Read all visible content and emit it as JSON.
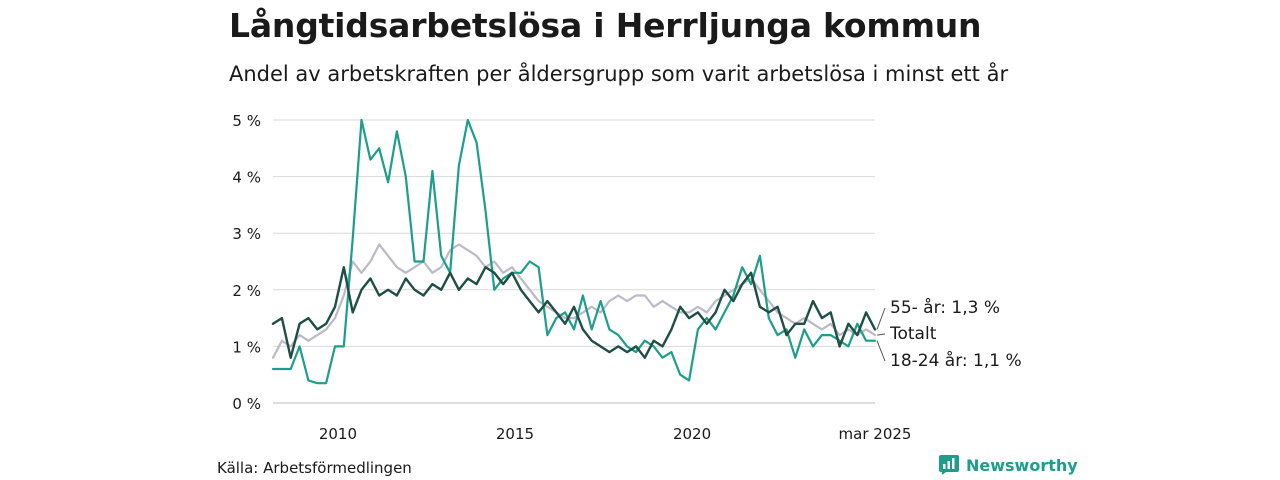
{
  "title": "Långtidsarbetslösa i Herrljunga kommun",
  "subtitle": "Andel av arbetskraften per åldersgrupp som varit arbetslösa i minst ett år",
  "source": "Källa: Arbetsförmedlingen",
  "brand": "Newsworthy",
  "brand_icon": "newsworthy-logo-icon",
  "colors": {
    "total": "#bdb9c6",
    "youth": "#1b9e8a",
    "senior": "#1f4e45",
    "grid": "#d9d9d9",
    "brand": "#1b9e8a"
  },
  "chart_data": {
    "type": "line",
    "x_ticks": [
      "2010",
      "2015",
      "2020",
      "mar 2025"
    ],
    "y_ticks": [
      "0 %",
      "1 %",
      "2 %",
      "3 %",
      "4 %",
      "5 %"
    ],
    "ylim": [
      0,
      5
    ],
    "xlim": [
      "2008-03",
      "2025-03"
    ],
    "grid": true,
    "end_labels": [
      {
        "series": "senior",
        "text": "55- år: 1,3 %"
      },
      {
        "series": "total",
        "text": "Totalt"
      },
      {
        "series": "youth",
        "text": "18-24 år: 1,1 %"
      }
    ],
    "series": [
      {
        "key": "total",
        "points": [
          [
            "2008-03",
            0.8
          ],
          [
            "2008-06",
            1.1
          ],
          [
            "2008-09",
            1.0
          ],
          [
            "2008-12",
            1.2
          ],
          [
            "2009-03",
            1.1
          ],
          [
            "2009-06",
            1.2
          ],
          [
            "2009-09",
            1.3
          ],
          [
            "2009-12",
            1.5
          ],
          [
            "2010-03",
            1.9
          ],
          [
            "2010-06",
            2.5
          ],
          [
            "2010-09",
            2.3
          ],
          [
            "2010-12",
            2.5
          ],
          [
            "2011-03",
            2.8
          ],
          [
            "2011-06",
            2.6
          ],
          [
            "2011-09",
            2.4
          ],
          [
            "2011-12",
            2.3
          ],
          [
            "2012-03",
            2.4
          ],
          [
            "2012-06",
            2.5
          ],
          [
            "2012-09",
            2.3
          ],
          [
            "2012-12",
            2.4
          ],
          [
            "2013-03",
            2.7
          ],
          [
            "2013-06",
            2.8
          ],
          [
            "2013-09",
            2.7
          ],
          [
            "2013-12",
            2.6
          ],
          [
            "2014-03",
            2.4
          ],
          [
            "2014-06",
            2.5
          ],
          [
            "2014-09",
            2.3
          ],
          [
            "2014-12",
            2.4
          ],
          [
            "2015-03",
            2.2
          ],
          [
            "2015-06",
            2.0
          ],
          [
            "2015-09",
            1.8
          ],
          [
            "2015-12",
            1.7
          ],
          [
            "2016-03",
            1.6
          ],
          [
            "2016-06",
            1.5
          ],
          [
            "2016-09",
            1.5
          ],
          [
            "2016-12",
            1.6
          ],
          [
            "2017-03",
            1.7
          ],
          [
            "2017-06",
            1.6
          ],
          [
            "2017-09",
            1.8
          ],
          [
            "2017-12",
            1.9
          ],
          [
            "2018-03",
            1.8
          ],
          [
            "2018-06",
            1.9
          ],
          [
            "2018-09",
            1.9
          ],
          [
            "2018-12",
            1.7
          ],
          [
            "2019-03",
            1.8
          ],
          [
            "2019-06",
            1.7
          ],
          [
            "2019-09",
            1.6
          ],
          [
            "2019-12",
            1.6
          ],
          [
            "2020-03",
            1.7
          ],
          [
            "2020-06",
            1.6
          ],
          [
            "2020-09",
            1.8
          ],
          [
            "2020-12",
            1.9
          ],
          [
            "2021-03",
            2.0
          ],
          [
            "2021-06",
            2.1
          ],
          [
            "2021-09",
            2.2
          ],
          [
            "2021-12",
            2.0
          ],
          [
            "2022-03",
            1.8
          ],
          [
            "2022-06",
            1.6
          ],
          [
            "2022-09",
            1.5
          ],
          [
            "2022-12",
            1.4
          ],
          [
            "2023-03",
            1.5
          ],
          [
            "2023-06",
            1.4
          ],
          [
            "2023-09",
            1.3
          ],
          [
            "2023-12",
            1.4
          ],
          [
            "2024-03",
            1.2
          ],
          [
            "2024-06",
            1.3
          ],
          [
            "2024-09",
            1.2
          ],
          [
            "2024-12",
            1.3
          ],
          [
            "2025-03",
            1.2
          ]
        ]
      },
      {
        "key": "youth",
        "points": [
          [
            "2008-03",
            0.6
          ],
          [
            "2008-06",
            0.6
          ],
          [
            "2008-09",
            0.6
          ],
          [
            "2008-12",
            1.0
          ],
          [
            "2009-03",
            0.4
          ],
          [
            "2009-06",
            0.35
          ],
          [
            "2009-09",
            0.35
          ],
          [
            "2009-12",
            1.0
          ],
          [
            "2010-03",
            1.0
          ],
          [
            "2010-06",
            2.9
          ],
          [
            "2010-09",
            5.0
          ],
          [
            "2010-12",
            4.3
          ],
          [
            "2011-03",
            4.5
          ],
          [
            "2011-06",
            3.9
          ],
          [
            "2011-09",
            4.8
          ],
          [
            "2011-12",
            4.0
          ],
          [
            "2012-03",
            2.5
          ],
          [
            "2012-06",
            2.5
          ],
          [
            "2012-09",
            4.1
          ],
          [
            "2012-12",
            2.6
          ],
          [
            "2013-03",
            2.3
          ],
          [
            "2013-06",
            4.2
          ],
          [
            "2013-09",
            5.0
          ],
          [
            "2013-12",
            4.6
          ],
          [
            "2014-03",
            3.4
          ],
          [
            "2014-06",
            2.0
          ],
          [
            "2014-09",
            2.2
          ],
          [
            "2014-12",
            2.3
          ],
          [
            "2015-03",
            2.3
          ],
          [
            "2015-06",
            2.5
          ],
          [
            "2015-09",
            2.4
          ],
          [
            "2015-12",
            1.2
          ],
          [
            "2016-03",
            1.5
          ],
          [
            "2016-06",
            1.6
          ],
          [
            "2016-09",
            1.3
          ],
          [
            "2016-12",
            1.9
          ],
          [
            "2017-03",
            1.3
          ],
          [
            "2017-06",
            1.8
          ],
          [
            "2017-09",
            1.3
          ],
          [
            "2017-12",
            1.2
          ],
          [
            "2018-03",
            1.0
          ],
          [
            "2018-06",
            0.9
          ],
          [
            "2018-09",
            1.1
          ],
          [
            "2018-12",
            1.0
          ],
          [
            "2019-03",
            0.8
          ],
          [
            "2019-06",
            0.9
          ],
          [
            "2019-09",
            0.5
          ],
          [
            "2019-12",
            0.4
          ],
          [
            "2020-03",
            1.3
          ],
          [
            "2020-06",
            1.5
          ],
          [
            "2020-09",
            1.3
          ],
          [
            "2020-12",
            1.6
          ],
          [
            "2021-03",
            1.9
          ],
          [
            "2021-06",
            2.4
          ],
          [
            "2021-09",
            2.1
          ],
          [
            "2021-12",
            2.6
          ],
          [
            "2022-03",
            1.5
          ],
          [
            "2022-06",
            1.2
          ],
          [
            "2022-09",
            1.3
          ],
          [
            "2022-12",
            0.8
          ],
          [
            "2023-03",
            1.3
          ],
          [
            "2023-06",
            1.0
          ],
          [
            "2023-09",
            1.2
          ],
          [
            "2023-12",
            1.2
          ],
          [
            "2024-03",
            1.1
          ],
          [
            "2024-06",
            1.0
          ],
          [
            "2024-09",
            1.4
          ],
          [
            "2024-12",
            1.1
          ],
          [
            "2025-03",
            1.1
          ]
        ]
      },
      {
        "key": "senior",
        "points": [
          [
            "2008-03",
            1.4
          ],
          [
            "2008-06",
            1.5
          ],
          [
            "2008-09",
            0.8
          ],
          [
            "2008-12",
            1.4
          ],
          [
            "2009-03",
            1.5
          ],
          [
            "2009-06",
            1.3
          ],
          [
            "2009-09",
            1.4
          ],
          [
            "2009-12",
            1.7
          ],
          [
            "2010-03",
            2.4
          ],
          [
            "2010-06",
            1.6
          ],
          [
            "2010-09",
            2.0
          ],
          [
            "2010-12",
            2.2
          ],
          [
            "2011-03",
            1.9
          ],
          [
            "2011-06",
            2.0
          ],
          [
            "2011-09",
            1.9
          ],
          [
            "2011-12",
            2.2
          ],
          [
            "2012-03",
            2.0
          ],
          [
            "2012-06",
            1.9
          ],
          [
            "2012-09",
            2.1
          ],
          [
            "2012-12",
            2.0
          ],
          [
            "2013-03",
            2.3
          ],
          [
            "2013-06",
            2.0
          ],
          [
            "2013-09",
            2.2
          ],
          [
            "2013-12",
            2.1
          ],
          [
            "2014-03",
            2.4
          ],
          [
            "2014-06",
            2.3
          ],
          [
            "2014-09",
            2.1
          ],
          [
            "2014-12",
            2.3
          ],
          [
            "2015-03",
            2.0
          ],
          [
            "2015-06",
            1.8
          ],
          [
            "2015-09",
            1.6
          ],
          [
            "2015-12",
            1.8
          ],
          [
            "2016-03",
            1.6
          ],
          [
            "2016-06",
            1.4
          ],
          [
            "2016-09",
            1.7
          ],
          [
            "2016-12",
            1.3
          ],
          [
            "2017-03",
            1.1
          ],
          [
            "2017-06",
            1.0
          ],
          [
            "2017-09",
            0.9
          ],
          [
            "2017-12",
            1.0
          ],
          [
            "2018-03",
            0.9
          ],
          [
            "2018-06",
            1.0
          ],
          [
            "2018-09",
            0.8
          ],
          [
            "2018-12",
            1.1
          ],
          [
            "2019-03",
            1.0
          ],
          [
            "2019-06",
            1.3
          ],
          [
            "2019-09",
            1.7
          ],
          [
            "2019-12",
            1.5
          ],
          [
            "2020-03",
            1.6
          ],
          [
            "2020-06",
            1.4
          ],
          [
            "2020-09",
            1.6
          ],
          [
            "2020-12",
            2.0
          ],
          [
            "2021-03",
            1.8
          ],
          [
            "2021-06",
            2.1
          ],
          [
            "2021-09",
            2.3
          ],
          [
            "2021-12",
            1.7
          ],
          [
            "2022-03",
            1.6
          ],
          [
            "2022-06",
            1.7
          ],
          [
            "2022-09",
            1.2
          ],
          [
            "2022-12",
            1.4
          ],
          [
            "2023-03",
            1.4
          ],
          [
            "2023-06",
            1.8
          ],
          [
            "2023-09",
            1.5
          ],
          [
            "2023-12",
            1.6
          ],
          [
            "2024-03",
            1.0
          ],
          [
            "2024-06",
            1.4
          ],
          [
            "2024-09",
            1.2
          ],
          [
            "2024-12",
            1.6
          ],
          [
            "2025-03",
            1.3
          ]
        ]
      }
    ]
  }
}
